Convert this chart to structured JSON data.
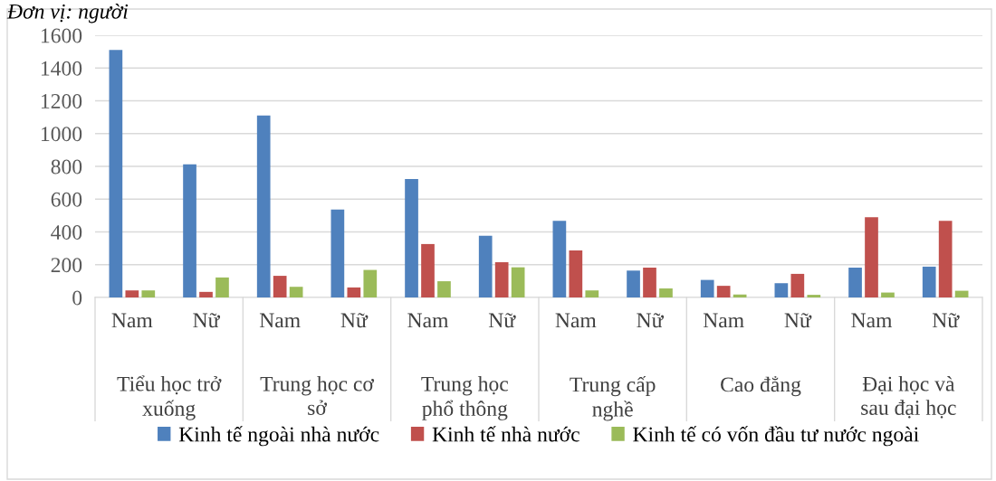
{
  "chart_data": {
    "type": "bar",
    "categories": [
      "Nam",
      "Nữ",
      "Nam",
      "Nữ",
      "Nam",
      "Nữ",
      "Nam",
      "Nữ",
      "Nam",
      "Nữ",
      "Nam",
      "Nữ"
    ],
    "series": [
      {
        "name": "Kinh tế ngoài nhà nước",
        "color": "#4f81bd",
        "values": [
          1510,
          812,
          1110,
          537,
          723,
          377,
          468,
          164,
          107,
          87,
          182,
          188
        ]
      },
      {
        "name": "Kinh tế nhà nước",
        "color": "#c0504d",
        "values": [
          43,
          34,
          132,
          61,
          326,
          215,
          287,
          182,
          71,
          144,
          490,
          468
        ]
      },
      {
        "name": "Kinh tế có vốn đầu tư nước ngoài",
        "color": "#9bbb59",
        "values": [
          43,
          122,
          65,
          168,
          99,
          184,
          43,
          55,
          18,
          16,
          30,
          41
        ]
      }
    ],
    "ylim": [
      0,
      1600
    ],
    "yticks": [
      0,
      200,
      400,
      600,
      800,
      1000,
      1200,
      1400,
      1600
    ],
    "grid": "y",
    "legend": "bottom",
    "annotations": [
      "Đơn vị: người",
      "Tiểu học trở\nxuống",
      "Trung học cơ\nsở",
      "Trung học\nphổ thông",
      "Trung cấp\nnghề",
      "Cao đẳng",
      "Đại học và\nsau đại học"
    ]
  }
}
